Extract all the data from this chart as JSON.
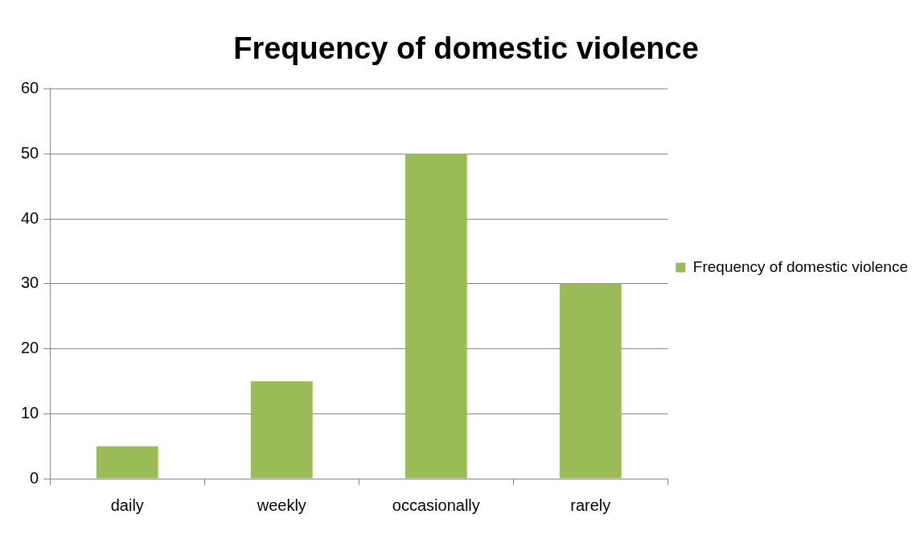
{
  "chart_data": {
    "type": "bar",
    "title": "Frequency of domestic violence",
    "categories": [
      "daily",
      "weekly",
      "occasionally",
      "rarely"
    ],
    "series": [
      {
        "name": "Frequency of domestic violence",
        "color": "#9bbb59",
        "values": [
          5,
          15,
          50,
          30
        ]
      }
    ],
    "ylim": [
      0,
      60
    ],
    "yticks": [
      0,
      10,
      20,
      30,
      40,
      50,
      60
    ],
    "grid": "y",
    "legend": "right"
  }
}
